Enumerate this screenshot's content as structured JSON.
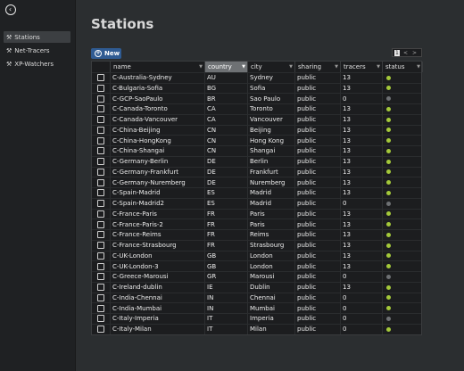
{
  "sidebar": {
    "back_icon": "arrow-left-circle-icon",
    "items": [
      {
        "label": "Stations",
        "icon": "wrench-icon",
        "active": true
      },
      {
        "label": "Net-Tracers",
        "icon": "wrench-icon",
        "active": false
      },
      {
        "label": "XP-Watchers",
        "icon": "wrench-icon",
        "active": false
      }
    ]
  },
  "page": {
    "title": "Stations",
    "new_button_label": "New",
    "pager": {
      "current_page": "1",
      "prev": "<",
      "next": ">"
    }
  },
  "table": {
    "columns": [
      "name",
      "country",
      "city",
      "sharing",
      "tracers",
      "status"
    ],
    "sorted_column": "country",
    "colors": {
      "status_ok": "#a4c93a",
      "status_off": "#6d7073"
    },
    "rows": [
      {
        "name": "C-Australia-Sydney",
        "country": "AU",
        "city": "Sydney",
        "sharing": "public",
        "tracers": "13",
        "status": "ok"
      },
      {
        "name": "C-Bulgaria-Sofia",
        "country": "BG",
        "city": "Sofia",
        "sharing": "public",
        "tracers": "13",
        "status": "ok"
      },
      {
        "name": "C-GCP-SaoPaulo",
        "country": "BR",
        "city": "Sao Paulo",
        "sharing": "public",
        "tracers": "0",
        "status": "off"
      },
      {
        "name": "C-Canada-Toronto",
        "country": "CA",
        "city": "Toronto",
        "sharing": "public",
        "tracers": "13",
        "status": "ok"
      },
      {
        "name": "C-Canada-Vancouver",
        "country": "CA",
        "city": "Vancouver",
        "sharing": "public",
        "tracers": "13",
        "status": "ok"
      },
      {
        "name": "C-China-Beijing",
        "country": "CN",
        "city": "Beijing",
        "sharing": "public",
        "tracers": "13",
        "status": "ok"
      },
      {
        "name": "C-China-HongKong",
        "country": "CN",
        "city": "Hong Kong",
        "sharing": "public",
        "tracers": "13",
        "status": "ok"
      },
      {
        "name": "C-China-Shangai",
        "country": "CN",
        "city": "Shangai",
        "sharing": "public",
        "tracers": "13",
        "status": "ok"
      },
      {
        "name": "C-Germany-Berlin",
        "country": "DE",
        "city": "Berlin",
        "sharing": "public",
        "tracers": "13",
        "status": "ok"
      },
      {
        "name": "C-Germany-Frankfurt",
        "country": "DE",
        "city": "Frankfurt",
        "sharing": "public",
        "tracers": "13",
        "status": "ok"
      },
      {
        "name": "C-Germany-Nuremberg",
        "country": "DE",
        "city": "Nuremberg",
        "sharing": "public",
        "tracers": "13",
        "status": "ok"
      },
      {
        "name": "C-Spain-Madrid",
        "country": "ES",
        "city": "Madrid",
        "sharing": "public",
        "tracers": "13",
        "status": "ok"
      },
      {
        "name": "C-Spain-Madrid2",
        "country": "ES",
        "city": "Madrid",
        "sharing": "public",
        "tracers": "0",
        "status": "off"
      },
      {
        "name": "C-France-Paris",
        "country": "FR",
        "city": "Paris",
        "sharing": "public",
        "tracers": "13",
        "status": "ok"
      },
      {
        "name": "C-France-Paris-2",
        "country": "FR",
        "city": "Paris",
        "sharing": "public",
        "tracers": "13",
        "status": "ok"
      },
      {
        "name": "C-France-Reims",
        "country": "FR",
        "city": "Reims",
        "sharing": "public",
        "tracers": "13",
        "status": "ok"
      },
      {
        "name": "C-France-Strasbourg",
        "country": "FR",
        "city": "Strasbourg",
        "sharing": "public",
        "tracers": "13",
        "status": "ok"
      },
      {
        "name": "C-UK-London",
        "country": "GB",
        "city": "London",
        "sharing": "public",
        "tracers": "13",
        "status": "ok"
      },
      {
        "name": "C-UK-London-3",
        "country": "GB",
        "city": "London",
        "sharing": "public",
        "tracers": "13",
        "status": "ok"
      },
      {
        "name": "C-Greece-Marousi",
        "country": "GR",
        "city": "Marousi",
        "sharing": "public",
        "tracers": "0",
        "status": "off"
      },
      {
        "name": "C-Ireland-dublin",
        "country": "IE",
        "city": "Dublin",
        "sharing": "public",
        "tracers": "13",
        "status": "ok"
      },
      {
        "name": "C-India-Chennai",
        "country": "IN",
        "city": "Chennai",
        "sharing": "public",
        "tracers": "0",
        "status": "ok"
      },
      {
        "name": "C-India-Mumbai",
        "country": "IN",
        "city": "Mumbai",
        "sharing": "public",
        "tracers": "0",
        "status": "ok"
      },
      {
        "name": "C-Italy-Imperia",
        "country": "IT",
        "city": "Imperia",
        "sharing": "public",
        "tracers": "0",
        "status": "off"
      },
      {
        "name": "C-Italy-Milan",
        "country": "IT",
        "city": "Milan",
        "sharing": "public",
        "tracers": "0",
        "status": "ok"
      }
    ]
  }
}
